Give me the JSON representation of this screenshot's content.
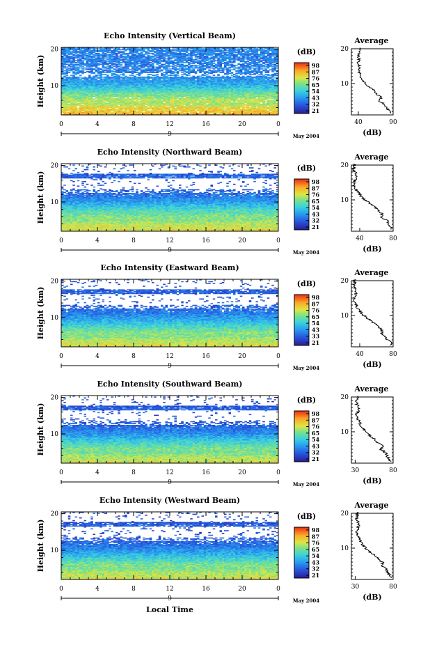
{
  "chart_data": [
    {
      "type": "heatmap",
      "title": "Echo Intensity (Vertical Beam)",
      "ylabel": "Height (km)",
      "x_ticks": [
        "0",
        "4",
        "8",
        "12",
        "16",
        "20",
        "0"
      ],
      "y_ticks": [
        "20",
        "10"
      ],
      "xlim": [
        0,
        24
      ],
      "ylim": [
        2,
        20.5
      ],
      "date_mark": "9",
      "date_label": "May 2004",
      "colorbar": {
        "unit": "(dB)",
        "ticks": [
          "98",
          "87",
          "76",
          "65",
          "54",
          "43",
          "32",
          "21"
        ],
        "range": [
          21,
          98
        ]
      },
      "average": {
        "title": "Average",
        "xlabel": "(dB)",
        "x_ticks": [
          "40",
          "90"
        ],
        "xlim": [
          30,
          90
        ],
        "y_ticks": [
          "20",
          "10"
        ],
        "profile": [
          [
            2,
            86
          ],
          [
            3,
            80
          ],
          [
            4,
            78
          ],
          [
            5,
            70
          ],
          [
            6,
            73
          ],
          [
            7,
            66
          ],
          [
            8,
            64
          ],
          [
            9,
            56
          ],
          [
            10,
            50
          ],
          [
            11,
            46
          ],
          [
            12,
            44
          ],
          [
            13,
            42
          ],
          [
            14,
            40
          ],
          [
            15,
            42
          ],
          [
            16,
            39
          ],
          [
            17,
            41
          ],
          [
            18,
            40
          ],
          [
            19,
            41
          ],
          [
            20,
            42
          ]
        ]
      }
    },
    {
      "type": "heatmap",
      "title": "Echo Intensity (Northward Beam)",
      "ylabel": "Height (km)",
      "x_ticks": [
        "0",
        "4",
        "8",
        "12",
        "16",
        "20",
        "0"
      ],
      "y_ticks": [
        "20",
        "10"
      ],
      "xlim": [
        0,
        24
      ],
      "ylim": [
        2,
        20.5
      ],
      "date_mark": "9",
      "date_label": "May 2004",
      "colorbar": {
        "unit": "(dB)",
        "ticks": [
          "98",
          "87",
          "76",
          "65",
          "54",
          "43",
          "32",
          "21"
        ],
        "range": [
          21,
          98
        ]
      },
      "average": {
        "title": "Average",
        "xlabel": "(dB)",
        "x_ticks": [
          "40",
          "80"
        ],
        "xlim": [
          30,
          80
        ],
        "y_ticks": [
          "20",
          "10"
        ],
        "profile": [
          [
            2,
            78
          ],
          [
            3,
            74
          ],
          [
            4,
            73
          ],
          [
            5,
            66
          ],
          [
            6,
            67
          ],
          [
            7,
            62
          ],
          [
            8,
            58
          ],
          [
            9,
            52
          ],
          [
            10,
            46
          ],
          [
            11,
            42
          ],
          [
            12,
            38
          ],
          [
            13,
            36
          ],
          [
            14,
            34
          ],
          [
            15,
            33
          ],
          [
            16,
            35
          ],
          [
            17,
            36
          ],
          [
            18,
            34
          ],
          [
            19,
            33
          ],
          [
            20,
            34
          ]
        ]
      }
    },
    {
      "type": "heatmap",
      "title": "Echo Intensity (Eastward Beam)",
      "ylabel": "Height (km)",
      "x_ticks": [
        "0",
        "4",
        "8",
        "12",
        "16",
        "20",
        "0"
      ],
      "y_ticks": [
        "20",
        "10"
      ],
      "xlim": [
        0,
        24
      ],
      "ylim": [
        2,
        20.5
      ],
      "date_mark": "9",
      "date_label": "May 2004",
      "colorbar": {
        "unit": "(dB)",
        "ticks": [
          "98",
          "87",
          "76",
          "65",
          "54",
          "43",
          "33",
          "21"
        ],
        "range": [
          21,
          98
        ]
      },
      "average": {
        "title": "Average",
        "xlabel": "(dB)",
        "x_ticks": [
          "40",
          "80"
        ],
        "xlim": [
          30,
          80
        ],
        "y_ticks": [
          "20",
          "10"
        ],
        "profile": [
          [
            2,
            78
          ],
          [
            3,
            73
          ],
          [
            4,
            71
          ],
          [
            5,
            66
          ],
          [
            6,
            67
          ],
          [
            7,
            61
          ],
          [
            8,
            56
          ],
          [
            9,
            50
          ],
          [
            10,
            45
          ],
          [
            11,
            41
          ],
          [
            12,
            38
          ],
          [
            13,
            36
          ],
          [
            14,
            34
          ],
          [
            15,
            33
          ],
          [
            16,
            35
          ],
          [
            17,
            36
          ],
          [
            18,
            33
          ],
          [
            19,
            33
          ],
          [
            20,
            34
          ]
        ]
      }
    },
    {
      "type": "heatmap",
      "title": "Echo Intensity (Southward Beam)",
      "ylabel": "Height (km)",
      "x_ticks": [
        "0",
        "4",
        "8",
        "12",
        "16",
        "20",
        "0"
      ],
      "y_ticks": [
        "20",
        "10"
      ],
      "xlim": [
        0,
        24
      ],
      "ylim": [
        2,
        20.5
      ],
      "date_mark": "9",
      "date_label": "May 2004",
      "colorbar": {
        "unit": "(dB)",
        "ticks": [
          "98",
          "87",
          "76",
          "65",
          "54",
          "43",
          "32",
          "21"
        ],
        "range": [
          21,
          98
        ]
      },
      "average": {
        "title": "Average",
        "xlabel": "(dB)",
        "x_ticks": [
          "30",
          "80"
        ],
        "xlim": [
          25,
          80
        ],
        "y_ticks": [
          "20",
          "10"
        ],
        "profile": [
          [
            2,
            76
          ],
          [
            3,
            72
          ],
          [
            4,
            70
          ],
          [
            5,
            64
          ],
          [
            6,
            66
          ],
          [
            7,
            60
          ],
          [
            8,
            55
          ],
          [
            9,
            49
          ],
          [
            10,
            44
          ],
          [
            11,
            40
          ],
          [
            12,
            37
          ],
          [
            13,
            35
          ],
          [
            14,
            33
          ],
          [
            15,
            32
          ],
          [
            16,
            34
          ],
          [
            17,
            35
          ],
          [
            18,
            32
          ],
          [
            19,
            32
          ],
          [
            20,
            33
          ]
        ]
      }
    },
    {
      "type": "heatmap",
      "title": "Echo Intensity (Westward Beam)",
      "ylabel": "Height (km)",
      "x_ticks": [
        "0",
        "4",
        "8",
        "12",
        "16",
        "20",
        "0"
      ],
      "y_ticks": [
        "20",
        "10"
      ],
      "xlim": [
        0,
        24
      ],
      "ylim": [
        2,
        20.5
      ],
      "date_mark": "9",
      "date_label": "May 2004",
      "colorbar": {
        "unit": "(dB)",
        "ticks": [
          "98",
          "87",
          "76",
          "65",
          "54",
          "43",
          "32",
          "21"
        ],
        "range": [
          21,
          98
        ]
      },
      "average": {
        "title": "Average",
        "xlabel": "(dB)",
        "x_ticks": [
          "30",
          "80"
        ],
        "xlim": [
          25,
          80
        ],
        "y_ticks": [
          "20",
          "10"
        ],
        "profile": [
          [
            2,
            77
          ],
          [
            3,
            72
          ],
          [
            4,
            71
          ],
          [
            5,
            65
          ],
          [
            6,
            66
          ],
          [
            7,
            60
          ],
          [
            8,
            55
          ],
          [
            9,
            49
          ],
          [
            10,
            44
          ],
          [
            11,
            40
          ],
          [
            12,
            37
          ],
          [
            13,
            35
          ],
          [
            14,
            33
          ],
          [
            15,
            32
          ],
          [
            16,
            34
          ],
          [
            17,
            35
          ],
          [
            18,
            32
          ],
          [
            19,
            32
          ],
          [
            20,
            33
          ]
        ]
      }
    }
  ],
  "bottom_xlabel": "Local Time"
}
